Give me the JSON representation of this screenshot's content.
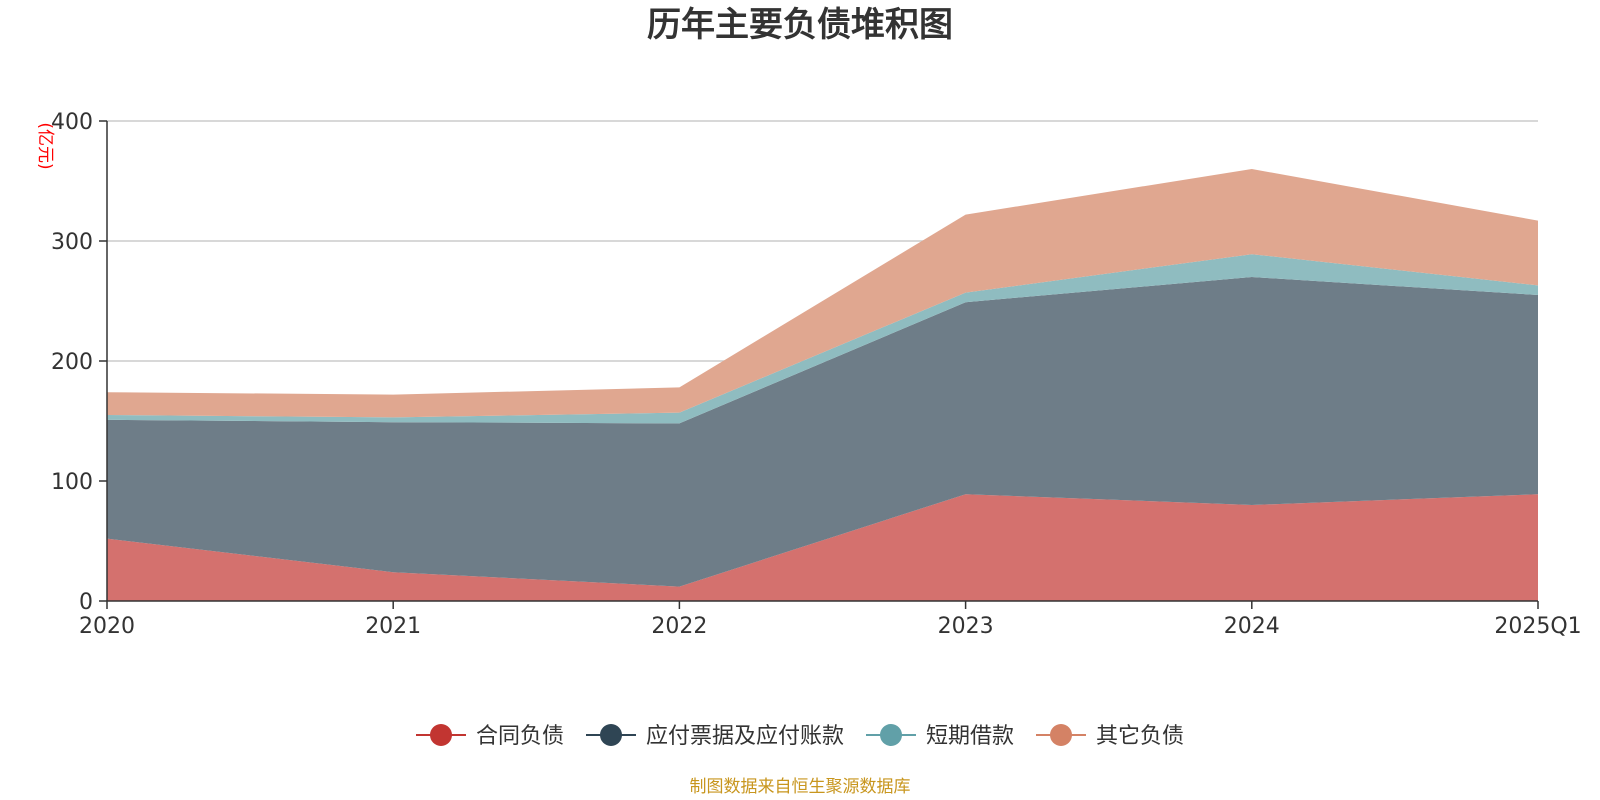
{
  "chart_data": {
    "type": "area",
    "title": "历年主要负债堆积图",
    "ylabel": "(亿元)",
    "categories": [
      "2020",
      "2021",
      "2022",
      "2023",
      "2024",
      "2025Q1"
    ],
    "ylim": [
      0,
      400
    ],
    "yticks": [
      "0",
      "100",
      "200",
      "300",
      "400"
    ],
    "grid": true,
    "legend_position": "bottom",
    "stacked": true,
    "series": [
      {
        "name": "合同负债",
        "values": [
          52,
          24,
          12,
          89,
          80,
          89
        ],
        "color": "#c23531",
        "fill": "#d4716e"
      },
      {
        "name": "应付票据及应付账款",
        "values": [
          99,
          125,
          136,
          160,
          190,
          166
        ],
        "color": "#2f4554",
        "fill": "#6e7d88"
      },
      {
        "name": "短期借款",
        "values": [
          4,
          4,
          9,
          8,
          19,
          8
        ],
        "color": "#61a0a8",
        "fill": "#8fbcc0"
      },
      {
        "name": "其它负债",
        "values": [
          19,
          19,
          21,
          65,
          71,
          54
        ],
        "color": "#d48265",
        "fill": "#e0a790"
      }
    ],
    "source": "制图数据来自恒生聚源数据库"
  },
  "colors": {
    "title": "#333333",
    "axis_text": "#333333",
    "ylabel": "#ff0000",
    "source": "#c8961e",
    "grid": "#cccccc",
    "axis": "#333333"
  }
}
